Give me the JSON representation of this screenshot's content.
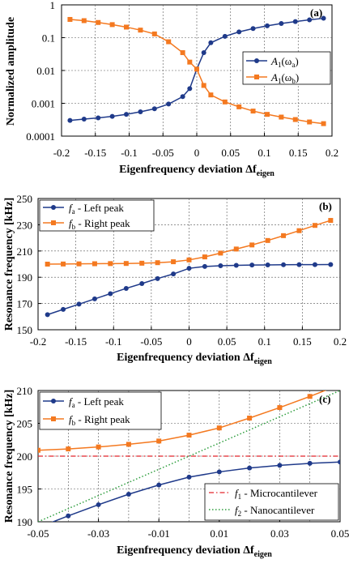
{
  "chart_data": [
    {
      "type": "line",
      "panel_label": "(a)",
      "xlabel": "Eigenfrequency deviation Δf",
      "xlabel_sub": "eigen",
      "ylabel": "Normalized amplitude",
      "xlim": [
        -0.2,
        0.2
      ],
      "ylim": [
        0.0001,
        1
      ],
      "yscale": "log",
      "x_ticks": [
        -0.2,
        -0.15,
        -0.1,
        -0.05,
        0,
        0.05,
        0.1,
        0.15,
        0.2
      ],
      "x_tick_labels": [
        "-0.2",
        "-0.15",
        "-0.1",
        "-0.05",
        "0",
        "0.05",
        "0.1",
        "0.15",
        "0.2"
      ],
      "y_ticks": [
        0.0001,
        0.001,
        0.01,
        0.1,
        1
      ],
      "y_tick_labels": [
        "0.0001",
        "0.001",
        "0.01",
        "0.1",
        "1"
      ],
      "grid": true,
      "legend_position": "center-right",
      "x": [
        -0.1875,
        -0.1667,
        -0.1458,
        -0.125,
        -0.1042,
        -0.0833,
        -0.0625,
        -0.0417,
        -0.0208,
        -0.0104,
        0,
        0.0104,
        0.0208,
        0.0417,
        0.0625,
        0.0833,
        0.1042,
        0.125,
        0.1458,
        0.1667,
        0.1875
      ],
      "series": [
        {
          "name_main": "A",
          "name_sub": "1",
          "name_paren_main": "ω",
          "name_paren_sub": "a",
          "color": "#1f3a8a",
          "marker": "circle",
          "values": [
            0.0003,
            0.00033,
            0.00036,
            0.0004,
            0.00046,
            0.00055,
            0.00068,
            0.00095,
            0.0016,
            0.0028,
            0.011,
            0.035,
            0.07,
            0.11,
            0.15,
            0.19,
            0.23,
            0.27,
            0.31,
            0.35,
            0.39
          ]
        },
        {
          "name_main": "A",
          "name_sub": "1",
          "name_paren_main": "ω",
          "name_paren_sub": "b",
          "color": "#f47920",
          "marker": "square",
          "values": [
            0.36,
            0.33,
            0.29,
            0.25,
            0.21,
            0.17,
            0.13,
            0.075,
            0.035,
            0.018,
            0.011,
            0.0035,
            0.0018,
            0.0011,
            0.00078,
            0.00058,
            0.00046,
            0.00038,
            0.00032,
            0.00027,
            0.00024
          ]
        }
      ]
    },
    {
      "type": "line",
      "panel_label": "(b)",
      "xlabel": "Eigenfrequency deviation Δf",
      "xlabel_sub": "eigen",
      "ylabel": "Resonance frequency [kHz]",
      "xlim": [
        -0.2,
        0.2
      ],
      "ylim": [
        150,
        250
      ],
      "x_ticks": [
        -0.2,
        -0.15,
        -0.1,
        -0.05,
        0,
        0.05,
        0.1,
        0.15,
        0.2
      ],
      "x_tick_labels": [
        "-0.2",
        "-0.15",
        "-0.1",
        "-0.05",
        "0",
        "0.05",
        "0.1",
        "0.15",
        "0.2"
      ],
      "y_ticks": [
        150,
        170,
        190,
        210,
        230,
        250
      ],
      "y_tick_labels": [
        "150",
        "170",
        "190",
        "210",
        "230",
        "250"
      ],
      "grid": true,
      "legend_position": "top-left",
      "x": [
        -0.1875,
        -0.1667,
        -0.1458,
        -0.125,
        -0.1042,
        -0.0833,
        -0.0625,
        -0.0417,
        -0.0208,
        0,
        0.0208,
        0.0417,
        0.0625,
        0.0833,
        0.1042,
        0.125,
        0.1458,
        0.1667,
        0.1875
      ],
      "series": [
        {
          "name_main": "f",
          "name_sub": "a",
          "name_rest": " - Left peak",
          "color": "#1f3a8a",
          "marker": "circle",
          "values": [
            161.5,
            165.5,
            169.5,
            173.5,
            177.5,
            181.5,
            185.2,
            189.0,
            192.5,
            196.8,
            198.2,
            198.8,
            199.1,
            199.3,
            199.4,
            199.5,
            199.6,
            199.6,
            199.7
          ]
        },
        {
          "name_main": "f",
          "name_sub": "b",
          "name_rest": " - Right peak",
          "color": "#f47920",
          "marker": "square",
          "values": [
            200.0,
            200.1,
            200.2,
            200.3,
            200.4,
            200.5,
            200.7,
            201.1,
            201.8,
            203.2,
            205.5,
            208.4,
            211.5,
            214.6,
            218.0,
            221.7,
            225.5,
            229.5,
            233.3
          ]
        }
      ]
    },
    {
      "type": "line",
      "panel_label": "(c)",
      "xlabel": "Eigenfrequency deviation Δf",
      "xlabel_sub": "eigen",
      "ylabel": "Resonance frequency [kHz]",
      "xlim": [
        -0.05,
        0.05
      ],
      "ylim": [
        190,
        210
      ],
      "x_ticks": [
        -0.05,
        -0.03,
        -0.01,
        0.01,
        0.03,
        0.05
      ],
      "x_tick_labels": [
        "-0.05",
        "-0.03",
        "-0.01",
        "0.01",
        "0.03",
        "0.05"
      ],
      "x_gridlines": [
        -0.04,
        -0.03,
        -0.02,
        -0.01,
        0,
        0.01,
        0.02,
        0.03,
        0.04
      ],
      "y_ticks": [
        190,
        195,
        200,
        205,
        210
      ],
      "y_tick_labels": [
        "190",
        "195",
        "200",
        "205",
        "210"
      ],
      "grid": true,
      "legend_position": "top-left",
      "legend2_position": "bottom-right",
      "x": [
        -0.05,
        -0.04,
        -0.03,
        -0.02,
        -0.01,
        0,
        0.01,
        0.02,
        0.03,
        0.04,
        0.05
      ],
      "series": [
        {
          "name_main": "f",
          "name_sub": "a",
          "name_rest": " - Left peak",
          "color": "#1f3a8a",
          "marker": "circle",
          "values": [
            189.1,
            190.9,
            192.6,
            194.2,
            195.6,
            196.8,
            197.6,
            198.2,
            198.6,
            198.9,
            199.1
          ]
        },
        {
          "name_main": "f",
          "name_sub": "b",
          "name_rest": " - Right peak",
          "color": "#f47920",
          "marker": "square",
          "values": [
            200.9,
            201.1,
            201.4,
            201.8,
            202.3,
            203.2,
            204.3,
            205.8,
            207.4,
            209.1,
            210.9
          ]
        }
      ],
      "reference_lines": [
        {
          "name_main": "f",
          "name_sub": "1",
          "name_rest": " - Microcantilever",
          "color": "#e3252b",
          "style": "dash-dot",
          "x": [
            -0.05,
            0.05
          ],
          "y": [
            200,
            200
          ]
        },
        {
          "name_main": "f",
          "name_sub": "2",
          "name_rest": " - Nanocantilever",
          "color": "#2e9e3e",
          "style": "dotted",
          "x": [
            -0.05,
            0.05
          ],
          "y": [
            190,
            210
          ]
        }
      ]
    }
  ]
}
